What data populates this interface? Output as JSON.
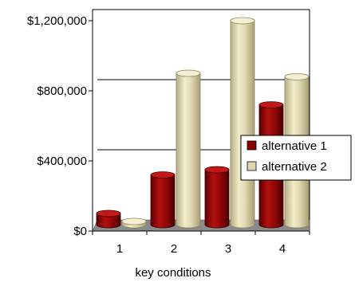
{
  "chart_data": {
    "type": "bar",
    "title": "",
    "xlabel": "key conditions",
    "ylabel": "",
    "categories": [
      "1",
      "2",
      "3",
      "4"
    ],
    "ylim": [
      0,
      1200000
    ],
    "yticks": [
      0,
      400000,
      800000,
      1200000
    ],
    "ytick_labels": [
      "$0",
      "$400,000",
      "$800,000",
      "$1,200,000"
    ],
    "series": [
      {
        "name": "alternative 1",
        "color": "#8b0000",
        "values": [
          100000,
          320000,
          350000,
          720000
        ]
      },
      {
        "name": "alternative 2",
        "color": "#ddd6b0",
        "values": [
          40000,
          900000,
          1200000,
          880000
        ]
      }
    ],
    "grid": "horizontal",
    "legend_position": "right",
    "style": "3d-cylinder"
  }
}
